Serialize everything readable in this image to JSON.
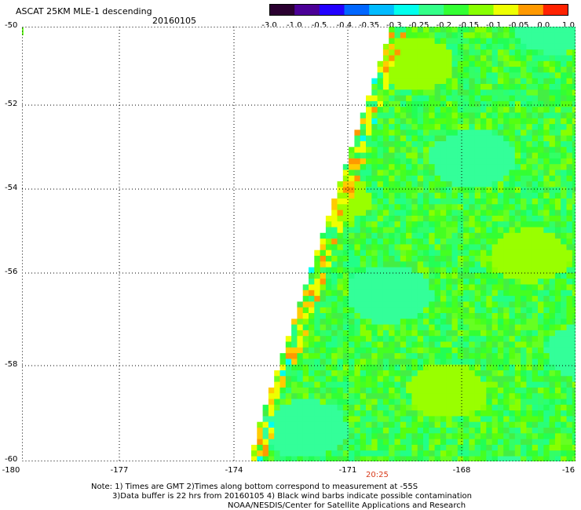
{
  "header": {
    "title": "ASCAT 25KM MLE-1 descending",
    "date": "20160105"
  },
  "colorbar": {
    "ticks": [
      "-3.0",
      "-1.0",
      "-0.5",
      "-0.4",
      "-0.35",
      "-0.3",
      "-0.25",
      "-0.2",
      "-0.15",
      "-0.1",
      "-0.05",
      "0.0",
      "1.0"
    ],
    "colors": [
      "#2a0030",
      "#4b0096",
      "#2200ff",
      "#0066ff",
      "#00bbff",
      "#00ffee",
      "#33ff88",
      "#33ff33",
      "#88ff00",
      "#eeff00",
      "#ff9900",
      "#ff2200"
    ]
  },
  "map": {
    "y_labels": [
      "-50",
      "-52",
      "-54",
      "-56",
      "-58",
      "-60"
    ],
    "x_labels": [
      "-180",
      "-177",
      "-174",
      "-171",
      "-168",
      "-16"
    ],
    "swath_time": "20:25",
    "grid": true
  },
  "footer": {
    "note_line1": "Note: 1) Times are GMT 2)Times along bottom correspond to measurement at -55S",
    "note_line2": "3)Data buffer is 22 hrs from 20160105 4) Black wind barbs indicate possible contamination",
    "credit": "NOAA/NESDIS/Center for Satellite Applications and Research"
  }
}
